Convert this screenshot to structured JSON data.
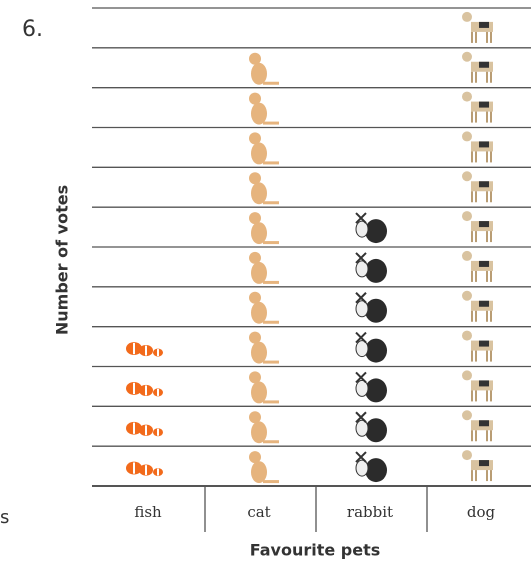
{
  "question": "6.",
  "margin_text": "s",
  "chart_data": {
    "type": "pictogram",
    "x_label": "Favourite pets",
    "y_label": "Number of votes",
    "categories": [
      "fish",
      "cat",
      "rabbit",
      "dog"
    ],
    "values": [
      4,
      11,
      7,
      12
    ],
    "colors": [
      "#f26a1b",
      "#e6b47e",
      "#2b2b2b",
      "#d9c3a0"
    ],
    "ylim": [
      0,
      12
    ],
    "grid": true
  }
}
